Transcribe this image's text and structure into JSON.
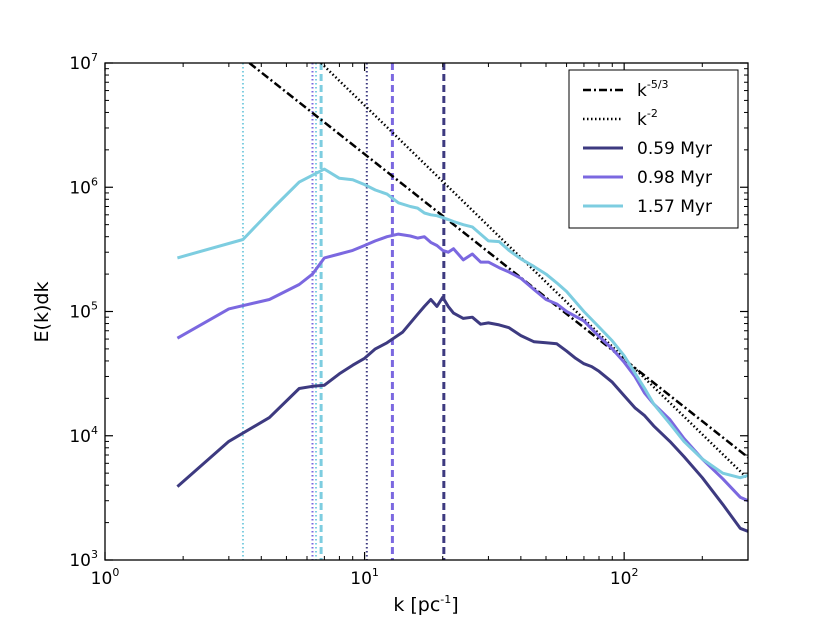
{
  "chart_data": {
    "type": "line",
    "x_scale": "log",
    "y_scale": "log",
    "xlim": [
      1,
      300
    ],
    "ylim": [
      1000,
      10000000
    ],
    "xlabel": "k [pc",
    "xlabel_sup": "-1",
    "xlabel_tail": "]",
    "ylabel": "E(k)dk",
    "grid": false,
    "legend_position": "top-right",
    "x_ticks": [
      {
        "value": 1,
        "base": "10",
        "exp": "0"
      },
      {
        "value": 10,
        "base": "10",
        "exp": "1"
      },
      {
        "value": 100,
        "base": "10",
        "exp": "2"
      }
    ],
    "y_ticks": [
      {
        "value": 1000,
        "base": "10",
        "exp": "3"
      },
      {
        "value": 10000,
        "base": "10",
        "exp": "4"
      },
      {
        "value": 100000,
        "base": "10",
        "exp": "5"
      },
      {
        "value": 1000000,
        "base": "10",
        "exp": "6"
      },
      {
        "value": 10000000,
        "base": "10",
        "exp": "7"
      }
    ],
    "reference_lines": [
      {
        "name": "k",
        "sup": "-5/3",
        "style": "dashdot",
        "color": "#000000",
        "x": [
          3.6,
          300
        ],
        "y": [
          10000000,
          6700
        ]
      },
      {
        "name": "k",
        "sup": "-2",
        "style": "dotted",
        "color": "#000000",
        "x": [
          6.8,
          300
        ],
        "y": [
          10000000,
          4500
        ]
      }
    ],
    "series": [
      {
        "name": "0.59 Myr",
        "color": "#3d3a80",
        "x": [
          1.9,
          3.0,
          4.3,
          5.6,
          6.3,
          7.0,
          8.0,
          9.0,
          10.0,
          11.0,
          12.2,
          14.0,
          16.0,
          17.0,
          18.0,
          19.0,
          20.0,
          21.0,
          22.0,
          24.0,
          26.0,
          28.0,
          30.0,
          33.0,
          36.0,
          40.0,
          45.0,
          50.0,
          55.0,
          60.0,
          65.0,
          70.0,
          75.0,
          80.0,
          90.0,
          100.0,
          110.0,
          120.0,
          130.0,
          150.0,
          170.0,
          200.0,
          240.0,
          280.0,
          300.0
        ],
        "y": [
          3900,
          9000,
          14000,
          24000,
          25000,
          25500,
          31500,
          37000,
          42000,
          50000,
          56000,
          68000,
          95000,
          110000,
          125000,
          110000,
          130000,
          110000,
          97000,
          88000,
          90000,
          79000,
          81000,
          78000,
          74000,
          64000,
          57000,
          56000,
          55000,
          48000,
          42000,
          38000,
          36000,
          33000,
          27000,
          21000,
          16800,
          14500,
          12000,
          9000,
          6800,
          4600,
          2800,
          1800,
          1700
        ]
      },
      {
        "name": "0.98 Myr",
        "color": "#7b68e0",
        "x": [
          1.9,
          3.0,
          4.3,
          5.6,
          6.3,
          7.0,
          8.0,
          9.0,
          10.0,
          11.0,
          12.2,
          13.5,
          15.0,
          16.0,
          17.0,
          18.0,
          19.0,
          20.0,
          21.0,
          22.0,
          24.0,
          26.0,
          28.0,
          30.0,
          33.0,
          36.0,
          40.0,
          45.0,
          50.0,
          55.0,
          60.0,
          70.0,
          80.0,
          90.0,
          100.0,
          110.0,
          120.0,
          130.0,
          150.0,
          170.0,
          200.0,
          240.0,
          280.0,
          300.0
        ],
        "y": [
          61000,
          105000,
          125000,
          165000,
          200000,
          270000,
          290000,
          310000,
          340000,
          370000,
          400000,
          420000,
          405000,
          390000,
          400000,
          360000,
          340000,
          310000,
          300000,
          320000,
          260000,
          290000,
          250000,
          250000,
          225000,
          208000,
          185000,
          150000,
          125000,
          115000,
          100000,
          84000,
          63000,
          50000,
          39000,
          30000,
          22000,
          18000,
          13500,
          9500,
          6500,
          4500,
          3200,
          3000
        ]
      },
      {
        "name": "1.57 Myr",
        "color": "#7dcde0",
        "x": [
          1.9,
          3.4,
          4.5,
          5.6,
          6.3,
          7.0,
          8.0,
          9.0,
          10.0,
          11.0,
          12.2,
          13.5,
          15.0,
          16.0,
          17.0,
          18.0,
          19.0,
          20.0,
          21.0,
          22.0,
          24.0,
          26.0,
          28.0,
          30.0,
          33.0,
          36.0,
          40.0,
          45.0,
          50.0,
          55.0,
          60.0,
          70.0,
          80.0,
          90.0,
          100.0,
          110.0,
          120.0,
          130.0,
          150.0,
          170.0,
          200.0,
          240.0,
          280.0,
          300.0
        ],
        "y": [
          270000,
          380000,
          700000,
          1100000,
          1250000,
          1400000,
          1180000,
          1150000,
          1050000,
          950000,
          880000,
          750000,
          700000,
          680000,
          620000,
          600000,
          590000,
          570000,
          550000,
          530000,
          500000,
          480000,
          420000,
          370000,
          365000,
          310000,
          265000,
          230000,
          200000,
          170000,
          145000,
          100000,
          75000,
          58000,
          44000,
          32000,
          24000,
          18000,
          12500,
          9000,
          6500,
          5000,
          4600,
          4800
        ]
      }
    ],
    "vertical_lines": [
      {
        "x": 3.4,
        "style": "dotted",
        "color": "#7dcde0"
      },
      {
        "x": 6.3,
        "style": "dotted",
        "color": "#7b68e0"
      },
      {
        "x": 6.5,
        "style": "dotted",
        "color": "#7dcde0"
      },
      {
        "x": 6.8,
        "style": "dashed",
        "color": "#7dcde0"
      },
      {
        "x": 10.2,
        "style": "dotted",
        "color": "#3d3a80"
      },
      {
        "x": 12.8,
        "style": "dashed",
        "color": "#7b68e0"
      },
      {
        "x": 20.2,
        "style": "dashed",
        "color": "#3d3a80"
      }
    ],
    "legend": [
      {
        "label": "k",
        "sup": "-5/3",
        "style": "dashdot",
        "color": "#000000"
      },
      {
        "label": "k",
        "sup": "-2",
        "style": "dotted",
        "color": "#000000"
      },
      {
        "label": "0.59 Myr",
        "sup": "",
        "style": "solid",
        "color": "#3d3a80"
      },
      {
        "label": "0.98 Myr",
        "sup": "",
        "style": "solid",
        "color": "#7b68e0"
      },
      {
        "label": "1.57 Myr",
        "sup": "",
        "style": "solid",
        "color": "#7dcde0"
      }
    ]
  }
}
